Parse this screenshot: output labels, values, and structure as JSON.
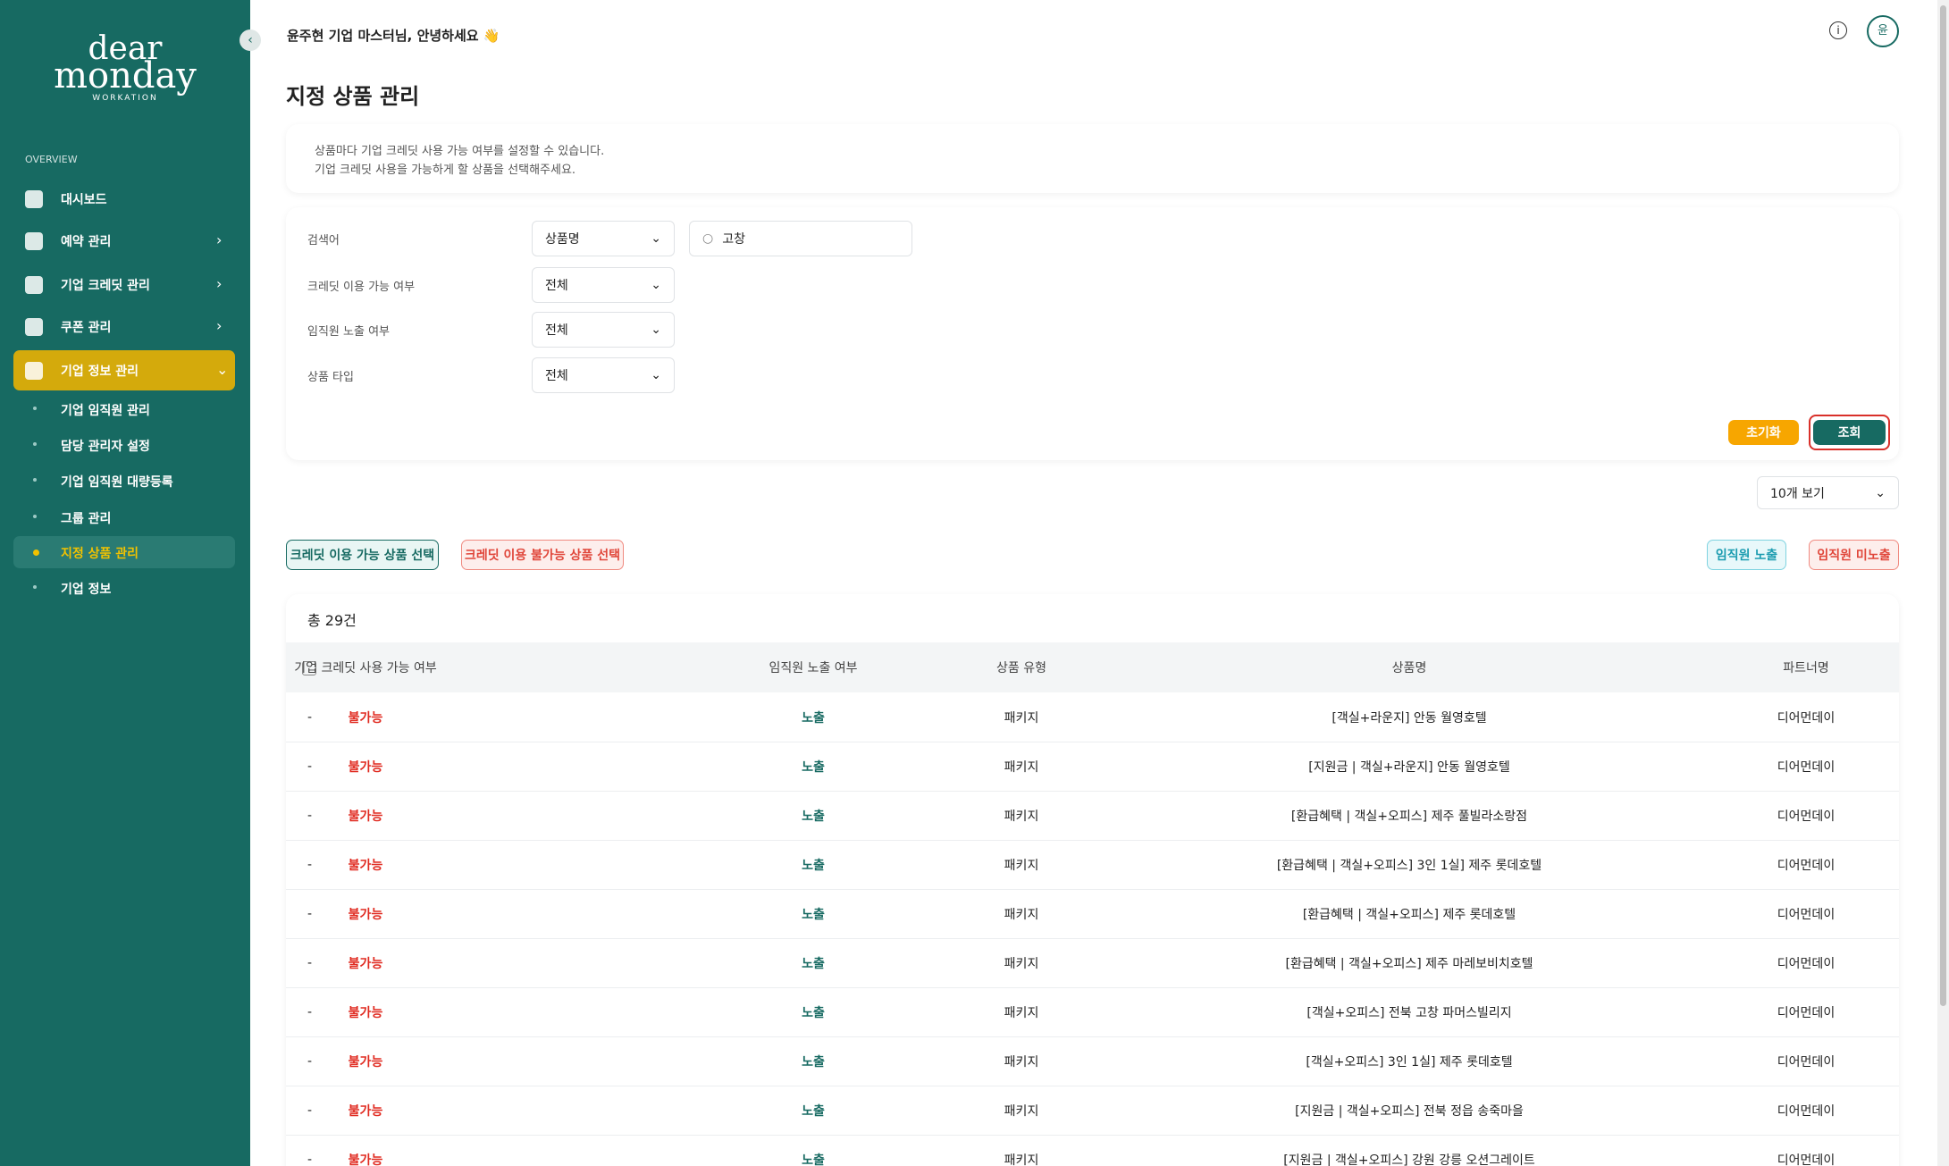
{
  "sidebar": {
    "logo": {
      "line1": "dear",
      "line2": "monday",
      "sub": "WORKATION"
    },
    "section": "OVERVIEW",
    "menu": [
      {
        "label": "대시보드",
        "arrow": false
      },
      {
        "label": "예약 관리",
        "arrow": true
      },
      {
        "label": "기업 크레딧 관리",
        "arrow": true
      },
      {
        "label": "쿠폰 관리",
        "arrow": true
      },
      {
        "label": "기업 정보 관리",
        "arrow": true,
        "active": true
      }
    ],
    "submenu": [
      {
        "label": "기업 임직원 관리"
      },
      {
        "label": "담당 관리자 설정"
      },
      {
        "label": "기업 임직원 대량등록"
      },
      {
        "label": "그룹 관리"
      },
      {
        "label": "지정 상품 관리",
        "active": true
      },
      {
        "label": "기업 정보"
      }
    ]
  },
  "header": {
    "greeting": "윤주현 기업 마스터님, 안녕하세요 👋",
    "avatar": "윤"
  },
  "page": {
    "title": "지정 상품 관리",
    "description": [
      "상품마다 기업 크레딧 사용 가능 여부를 설정할 수 있습니다.",
      "기업 크레딧 사용을 가능하게 할 상품을 선택해주세요."
    ]
  },
  "filters": {
    "rows": [
      {
        "label": "검색어",
        "select": "상품명",
        "search": "고창"
      },
      {
        "label": "크레딧 이용 가능 여부",
        "select": "전체"
      },
      {
        "label": "임직원 노출 여부",
        "select": "전체"
      },
      {
        "label": "상품 타입",
        "select": "전체"
      }
    ],
    "reset": "초기화",
    "submit": "조회"
  },
  "page_size": "10개 보기",
  "actions": {
    "credit_on": "크레딧 이용 가능 상품 선택",
    "credit_off": "크레딧 이용 불가능 상품 선택",
    "show": "임직원 노출",
    "hide": "임직원 미노출"
  },
  "table": {
    "total": "총 29건",
    "columns": [
      "기업 크레딧 사용 가능 여부",
      "임직원 노출 여부",
      "상품 유형",
      "상품명",
      "파트너명"
    ],
    "rows": [
      [
        "-",
        "불가능",
        "노출",
        "패키지",
        "[객실+라운지] 안동 월영호텔",
        "디어먼데이"
      ],
      [
        "-",
        "불가능",
        "노출",
        "패키지",
        "[지원금 | 객실+라운지] 안동 월영호텔",
        "디어먼데이"
      ],
      [
        "-",
        "불가능",
        "노출",
        "패키지",
        "[환급혜택 | 객실+오피스] 제주 풀빌라소랑점",
        "디어먼데이"
      ],
      [
        "-",
        "불가능",
        "노출",
        "패키지",
        "[환급혜택 | 객실+오피스] 3인 1실] 제주 롯데호텔",
        "디어먼데이"
      ],
      [
        "-",
        "불가능",
        "노출",
        "패키지",
        "[환급혜택 | 객실+오피스] 제주 롯데호텔",
        "디어먼데이"
      ],
      [
        "-",
        "불가능",
        "노출",
        "패키지",
        "[환급혜택 | 객실+오피스] 제주 마레보비치호텔",
        "디어먼데이"
      ],
      [
        "-",
        "불가능",
        "노출",
        "패키지",
        "[객실+오피스] 전북 고창 파머스빌리지",
        "디어먼데이"
      ],
      [
        "-",
        "불가능",
        "노출",
        "패키지",
        "[객실+오피스] 3인 1실] 제주 롯데호텔",
        "디어먼데이"
      ],
      [
        "-",
        "불가능",
        "노출",
        "패키지",
        "[지원금 | 객실+오피스] 전북 정읍 송죽마을",
        "디어먼데이"
      ],
      [
        "-",
        "불가능",
        "노출",
        "패키지",
        "[지원금 | 객실+오피스] 강원 강릉 오션그레이트",
        "디어먼데이"
      ]
    ]
  }
}
